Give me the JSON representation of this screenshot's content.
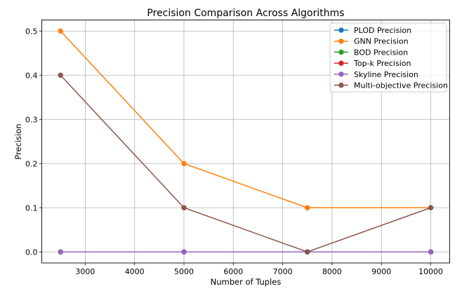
{
  "chart_data": {
    "type": "line",
    "title": "Precision Comparison Across Algorithms",
    "xlabel": "Number of Tuples",
    "ylabel": "Precision",
    "x": [
      2500,
      5000,
      7500,
      10000
    ],
    "xlim": [
      2120,
      10383
    ],
    "ylim": [
      -0.025,
      0.525
    ],
    "xticks": [
      3000,
      4000,
      5000,
      6000,
      7000,
      8000,
      9000,
      10000
    ],
    "yticks": [
      0.0,
      0.1,
      0.2,
      0.3,
      0.4,
      0.5
    ],
    "ytick_labels": [
      "0.0",
      "0.1",
      "0.2",
      "0.3",
      "0.4",
      "0.5"
    ],
    "grid": true,
    "legend_position": "top-right",
    "series": [
      {
        "name": "PLOD Precision",
        "color": "#1f77b4",
        "values": [
          0,
          0,
          0,
          0
        ]
      },
      {
        "name": "GNN Precision",
        "color": "#ff7f0e",
        "values": [
          0.5,
          0.2,
          0.1,
          0.1
        ]
      },
      {
        "name": "BOD Precision",
        "color": "#2ca02c",
        "values": [
          0,
          0,
          0,
          0
        ]
      },
      {
        "name": "Top-k Precision",
        "color": "#d62728",
        "values": [
          0,
          0,
          0,
          0
        ]
      },
      {
        "name": "Skyline Precision",
        "color": "#9467bd",
        "values": [
          0,
          0,
          0,
          0
        ]
      },
      {
        "name": "Multi-objective Precision",
        "color": "#8c564b",
        "values": [
          0.4,
          0.1,
          0,
          0.1
        ]
      }
    ]
  }
}
